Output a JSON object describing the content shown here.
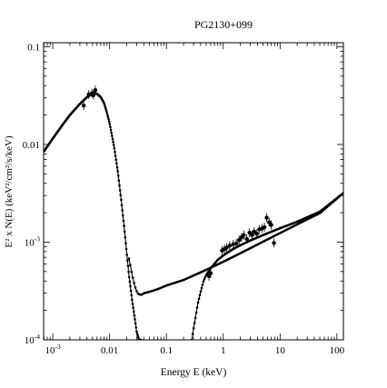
{
  "chart_data": {
    "type": "scatter",
    "title": "PG2130+099",
    "xlabel": "Energy E (keV)",
    "ylabel": "E² x N(E) (keV²/cm²/s/keV)",
    "xscale": "log",
    "yscale": "log",
    "xlim": [
      0.00069,
      130
    ],
    "ylim": [
      0.0001,
      0.11
    ],
    "grid": false,
    "x_ticks": [
      {
        "value": 0.001,
        "label": "10",
        "sup": "-3"
      },
      {
        "value": 0.01,
        "label": "0.01",
        "sup": ""
      },
      {
        "value": 0.1,
        "label": "0.1",
        "sup": ""
      },
      {
        "value": 1,
        "label": "1",
        "sup": ""
      },
      {
        "value": 10,
        "label": "10",
        "sup": ""
      },
      {
        "value": 100,
        "label": "100",
        "sup": ""
      }
    ],
    "y_ticks": [
      {
        "value": 0.0001,
        "label": "10",
        "sup": "-4"
      },
      {
        "value": 0.001,
        "label": "10",
        "sup": "-3"
      },
      {
        "value": 0.01,
        "label": "0.01",
        "sup": ""
      },
      {
        "value": 0.1,
        "label": "0.1",
        "sup": ""
      }
    ],
    "series": [
      {
        "kind": "model-curve",
        "x": [
          0.0007,
          0.001,
          0.0015,
          0.002,
          0.003,
          0.004,
          0.005,
          0.0055,
          0.006,
          0.007,
          0.008,
          0.009,
          0.01,
          0.012,
          0.014,
          0.016,
          0.018,
          0.02,
          0.022,
          0.025,
          0.028,
          0.03,
          0.033,
          0.036
        ],
        "y": [
          0.0085,
          0.0115,
          0.016,
          0.02,
          0.026,
          0.0305,
          0.033,
          0.0335,
          0.033,
          0.0305,
          0.0265,
          0.021,
          0.0165,
          0.0095,
          0.0052,
          0.0027,
          0.00145,
          0.00078,
          0.00045,
          0.00025,
          0.00016,
          0.00012,
          0.0001,
          0.0001
        ]
      },
      {
        "kind": "model-curve",
        "x": [
          0.022,
          0.025,
          0.028,
          0.031,
          0.034,
          0.037,
          0.04,
          0.05,
          0.07,
          0.1,
          0.2,
          0.5,
          1,
          2,
          5,
          10,
          20,
          50,
          130
        ],
        "y": [
          0.00068,
          0.00046,
          0.00035,
          0.0003,
          0.00029,
          0.00029,
          0.0003,
          0.00031,
          0.00033,
          0.00036,
          0.00041,
          0.00052,
          0.00063,
          0.00077,
          0.00101,
          0.00124,
          0.00152,
          0.00198,
          0.00318
        ]
      },
      {
        "kind": "model-curve",
        "x": [
          0.28,
          0.3,
          0.33,
          0.36,
          0.4,
          0.45,
          0.5,
          0.55,
          0.6,
          0.7,
          0.8,
          1,
          1.3,
          1.6,
          2,
          3,
          5,
          10,
          20,
          50,
          130
        ],
        "y": [
          0.0001,
          0.00013,
          0.00018,
          0.00024,
          0.00031,
          0.0004,
          0.00046,
          0.0005,
          0.00054,
          0.0006,
          0.00066,
          0.00073,
          0.00081,
          0.00087,
          0.00093,
          0.00104,
          0.00118,
          0.00139,
          0.00162,
          0.00205,
          0.00318
        ]
      },
      {
        "kind": "data-points",
        "x": [
          0.0035,
          0.0043,
          0.0049,
          0.0052,
          0.0056,
          0.56,
          0.6,
          0.95,
          1.05,
          1.15,
          1.3,
          1.5,
          1.7,
          1.9,
          2.1,
          2.3,
          2.6,
          2.9,
          3.2,
          3.5,
          3.9,
          4.3,
          4.8,
          5.3,
          5.8,
          6.4,
          7.0,
          7.8
        ],
        "y": [
          0.025,
          0.0325,
          0.0335,
          0.032,
          0.036,
          0.00045,
          0.00048,
          0.00082,
          0.00085,
          0.00088,
          0.00092,
          0.00095,
          0.00097,
          0.00105,
          0.00112,
          0.00118,
          0.00108,
          0.00125,
          0.00118,
          0.00128,
          0.00122,
          0.00135,
          0.00138,
          0.00142,
          0.00178,
          0.0016,
          0.0015,
          0.00098
        ]
      }
    ]
  }
}
